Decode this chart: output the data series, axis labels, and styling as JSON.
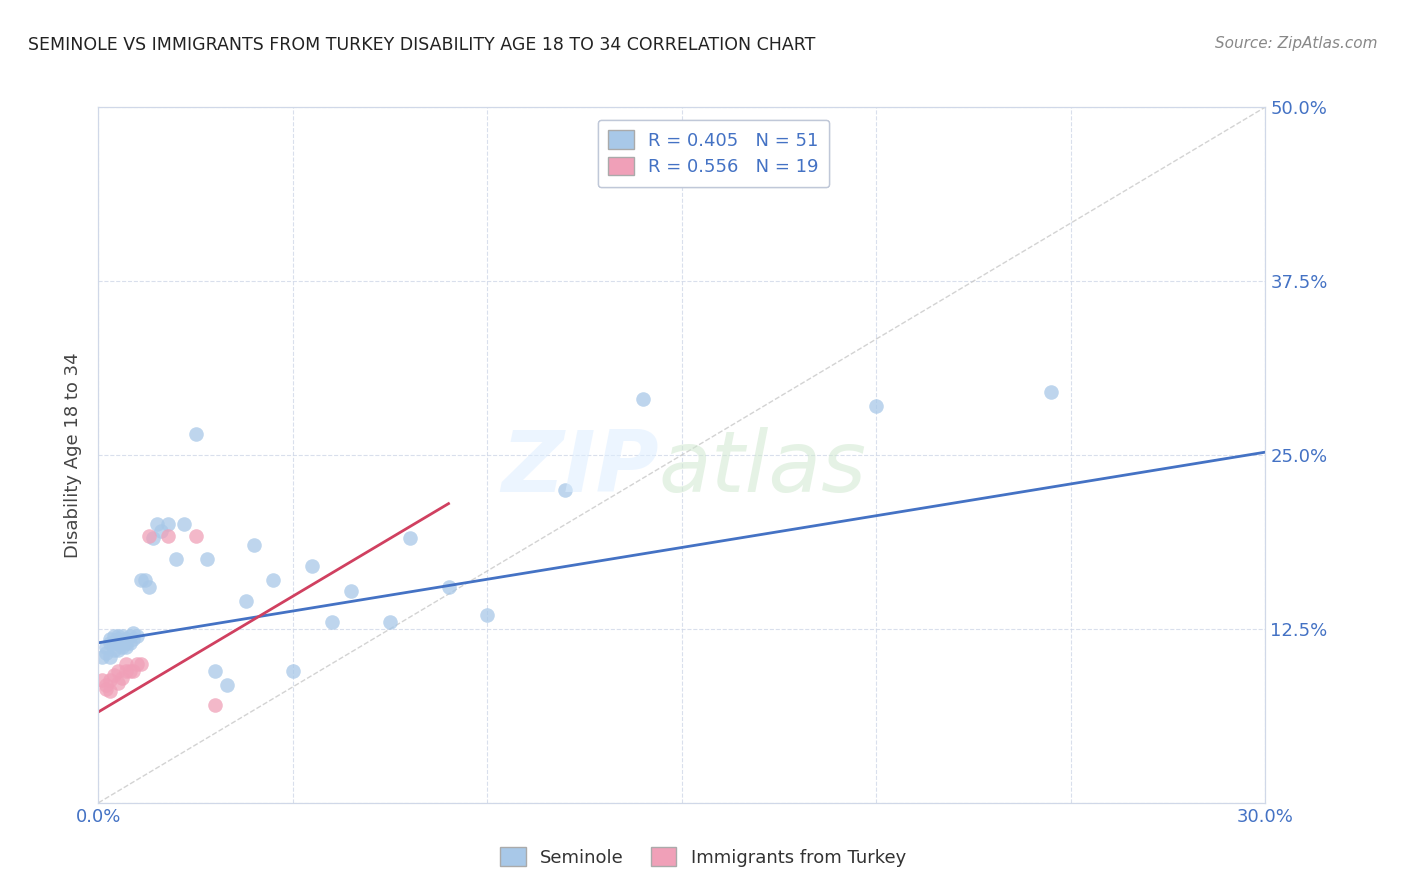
{
  "title": "SEMINOLE VS IMMIGRANTS FROM TURKEY DISABILITY AGE 18 TO 34 CORRELATION CHART",
  "source": "Source: ZipAtlas.com",
  "ylabel": "Disability Age 18 to 34",
  "xlim": [
    0.0,
    0.3
  ],
  "ylim": [
    0.0,
    0.5
  ],
  "x_tick_positions": [
    0.0,
    0.05,
    0.1,
    0.15,
    0.2,
    0.25,
    0.3
  ],
  "x_tick_labels": [
    "0.0%",
    "",
    "",
    "",
    "",
    "",
    "30.0%"
  ],
  "y_tick_positions": [
    0.0,
    0.125,
    0.25,
    0.375,
    0.5
  ],
  "y_tick_labels_right": [
    "",
    "12.5%",
    "25.0%",
    "37.5%",
    "50.0%"
  ],
  "seminole_R": "0.405",
  "seminole_N": "51",
  "turkey_R": "0.556",
  "turkey_N": "19",
  "seminole_color": "#a8c8e8",
  "turkey_color": "#f0a0b8",
  "seminole_line_color": "#4472c4",
  "turkey_line_color": "#d04060",
  "diagonal_color": "#c8c8c8",
  "tick_label_color": "#4472c4",
  "seminole_x": [
    0.001,
    0.002,
    0.002,
    0.003,
    0.003,
    0.003,
    0.004,
    0.004,
    0.004,
    0.005,
    0.005,
    0.005,
    0.006,
    0.006,
    0.006,
    0.007,
    0.007,
    0.007,
    0.008,
    0.008,
    0.009,
    0.009,
    0.01,
    0.011,
    0.012,
    0.013,
    0.014,
    0.015,
    0.016,
    0.018,
    0.02,
    0.022,
    0.025,
    0.028,
    0.03,
    0.033,
    0.038,
    0.04,
    0.045,
    0.05,
    0.055,
    0.06,
    0.065,
    0.075,
    0.08,
    0.09,
    0.1,
    0.12,
    0.14,
    0.2,
    0.245
  ],
  "seminole_y": [
    0.105,
    0.108,
    0.112,
    0.105,
    0.115,
    0.118,
    0.11,
    0.115,
    0.12,
    0.11,
    0.118,
    0.12,
    0.112,
    0.115,
    0.12,
    0.112,
    0.115,
    0.118,
    0.115,
    0.12,
    0.118,
    0.122,
    0.12,
    0.16,
    0.16,
    0.155,
    0.19,
    0.2,
    0.195,
    0.2,
    0.175,
    0.2,
    0.265,
    0.175,
    0.095,
    0.085,
    0.145,
    0.185,
    0.16,
    0.095,
    0.17,
    0.13,
    0.152,
    0.13,
    0.19,
    0.155,
    0.135,
    0.225,
    0.29,
    0.285,
    0.295
  ],
  "turkey_x": [
    0.001,
    0.002,
    0.002,
    0.003,
    0.003,
    0.004,
    0.005,
    0.005,
    0.006,
    0.007,
    0.007,
    0.008,
    0.009,
    0.01,
    0.011,
    0.013,
    0.018,
    0.025,
    0.03
  ],
  "turkey_y": [
    0.088,
    0.082,
    0.085,
    0.08,
    0.088,
    0.092,
    0.086,
    0.095,
    0.09,
    0.095,
    0.1,
    0.095,
    0.095,
    0.1,
    0.1,
    0.192,
    0.192,
    0.192,
    0.07
  ],
  "sem_line_x": [
    0.0,
    0.3
  ],
  "sem_line_y": [
    0.115,
    0.252
  ],
  "tur_line_x": [
    -0.002,
    0.09
  ],
  "tur_line_y": [
    0.062,
    0.215
  ]
}
